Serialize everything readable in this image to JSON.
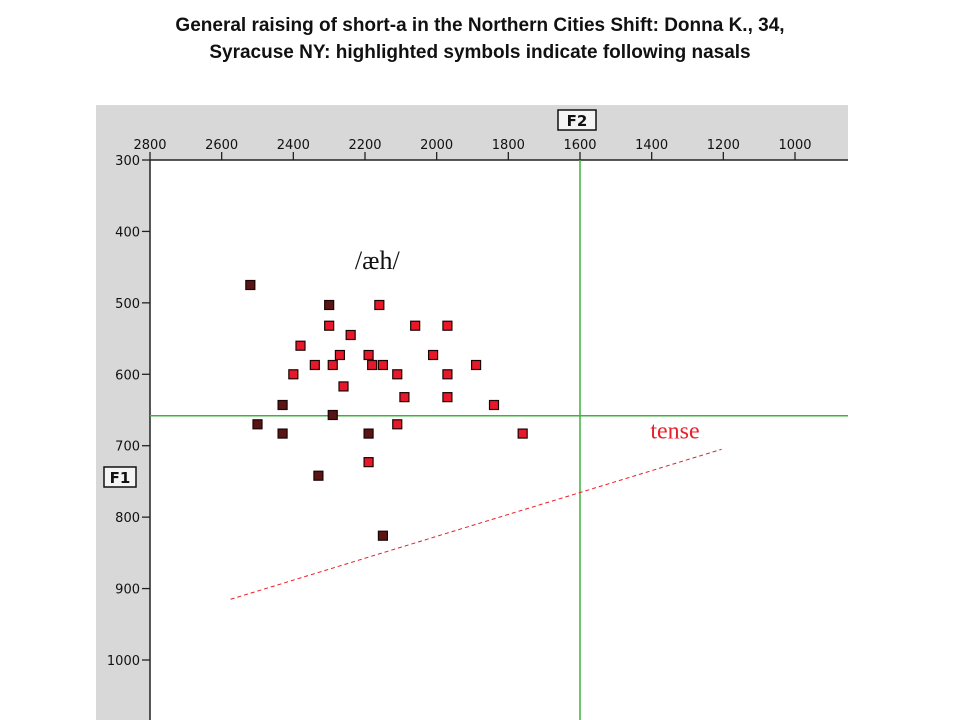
{
  "title_lines": [
    "General raising of short-a in the Northern Cities Shift: Donna K., 34,",
    "Syracuse NY: highlighted symbols indicate following nasals"
  ],
  "colors": {
    "panel": "#d8d8d8",
    "plot": "#ffffff",
    "grid_line": "#3db33d",
    "point_fill": "#e8182a",
    "point_fill_nasal": "#5a1414",
    "point_border": "#1a0505",
    "annot_tense": "#e8202a",
    "dashed_line": "#e8202a"
  },
  "chart_data": {
    "type": "scatter",
    "x_axis": {
      "label": "F2",
      "reversed": true,
      "range": [
        2800,
        850
      ],
      "ticks": [
        2800,
        2600,
        2400,
        2200,
        2000,
        1800,
        1600,
        1400,
        1200,
        1000
      ]
    },
    "y_axis": {
      "label": "F1",
      "reversed": true,
      "range": [
        300,
        1080
      ],
      "ticks": [
        300,
        400,
        500,
        600,
        700,
        800,
        900,
        1000
      ]
    },
    "reference_lines": {
      "x": 1600,
      "y": 658
    },
    "annotations": [
      {
        "text": "/æh/",
        "x": 2150,
        "y": 440
      },
      {
        "text": "tense",
        "x": 1320,
        "y": 677
      }
    ],
    "dashed_line": {
      "x1": 2575,
      "y1": 915,
      "x2": 1205,
      "y2": 705
    },
    "points": [
      {
        "x": 2520,
        "y": 475,
        "nasal": true
      },
      {
        "x": 2300,
        "y": 503,
        "nasal": true
      },
      {
        "x": 2160,
        "y": 503,
        "nasal": false
      },
      {
        "x": 2300,
        "y": 532,
        "nasal": false
      },
      {
        "x": 2060,
        "y": 532,
        "nasal": false
      },
      {
        "x": 1970,
        "y": 532,
        "nasal": false
      },
      {
        "x": 2240,
        "y": 545,
        "nasal": false
      },
      {
        "x": 2380,
        "y": 560,
        "nasal": false
      },
      {
        "x": 2270,
        "y": 573,
        "nasal": false
      },
      {
        "x": 2190,
        "y": 573,
        "nasal": false
      },
      {
        "x": 2010,
        "y": 573,
        "nasal": false
      },
      {
        "x": 2340,
        "y": 587,
        "nasal": false
      },
      {
        "x": 2290,
        "y": 587,
        "nasal": false
      },
      {
        "x": 2180,
        "y": 587,
        "nasal": false
      },
      {
        "x": 2150,
        "y": 587,
        "nasal": false
      },
      {
        "x": 1890,
        "y": 587,
        "nasal": false
      },
      {
        "x": 2400,
        "y": 600,
        "nasal": false
      },
      {
        "x": 2110,
        "y": 600,
        "nasal": false
      },
      {
        "x": 1970,
        "y": 600,
        "nasal": false
      },
      {
        "x": 2260,
        "y": 617,
        "nasal": false
      },
      {
        "x": 2090,
        "y": 632,
        "nasal": false
      },
      {
        "x": 1970,
        "y": 632,
        "nasal": false
      },
      {
        "x": 2430,
        "y": 643,
        "nasal": true
      },
      {
        "x": 1840,
        "y": 643,
        "nasal": false
      },
      {
        "x": 2290,
        "y": 657,
        "nasal": true
      },
      {
        "x": 2500,
        "y": 670,
        "nasal": true
      },
      {
        "x": 2110,
        "y": 670,
        "nasal": false
      },
      {
        "x": 2430,
        "y": 683,
        "nasal": true
      },
      {
        "x": 2190,
        "y": 683,
        "nasal": true
      },
      {
        "x": 1760,
        "y": 683,
        "nasal": false
      },
      {
        "x": 2190,
        "y": 723,
        "nasal": false
      },
      {
        "x": 2330,
        "y": 742,
        "nasal": true
      },
      {
        "x": 2150,
        "y": 826,
        "nasal": true
      }
    ]
  }
}
